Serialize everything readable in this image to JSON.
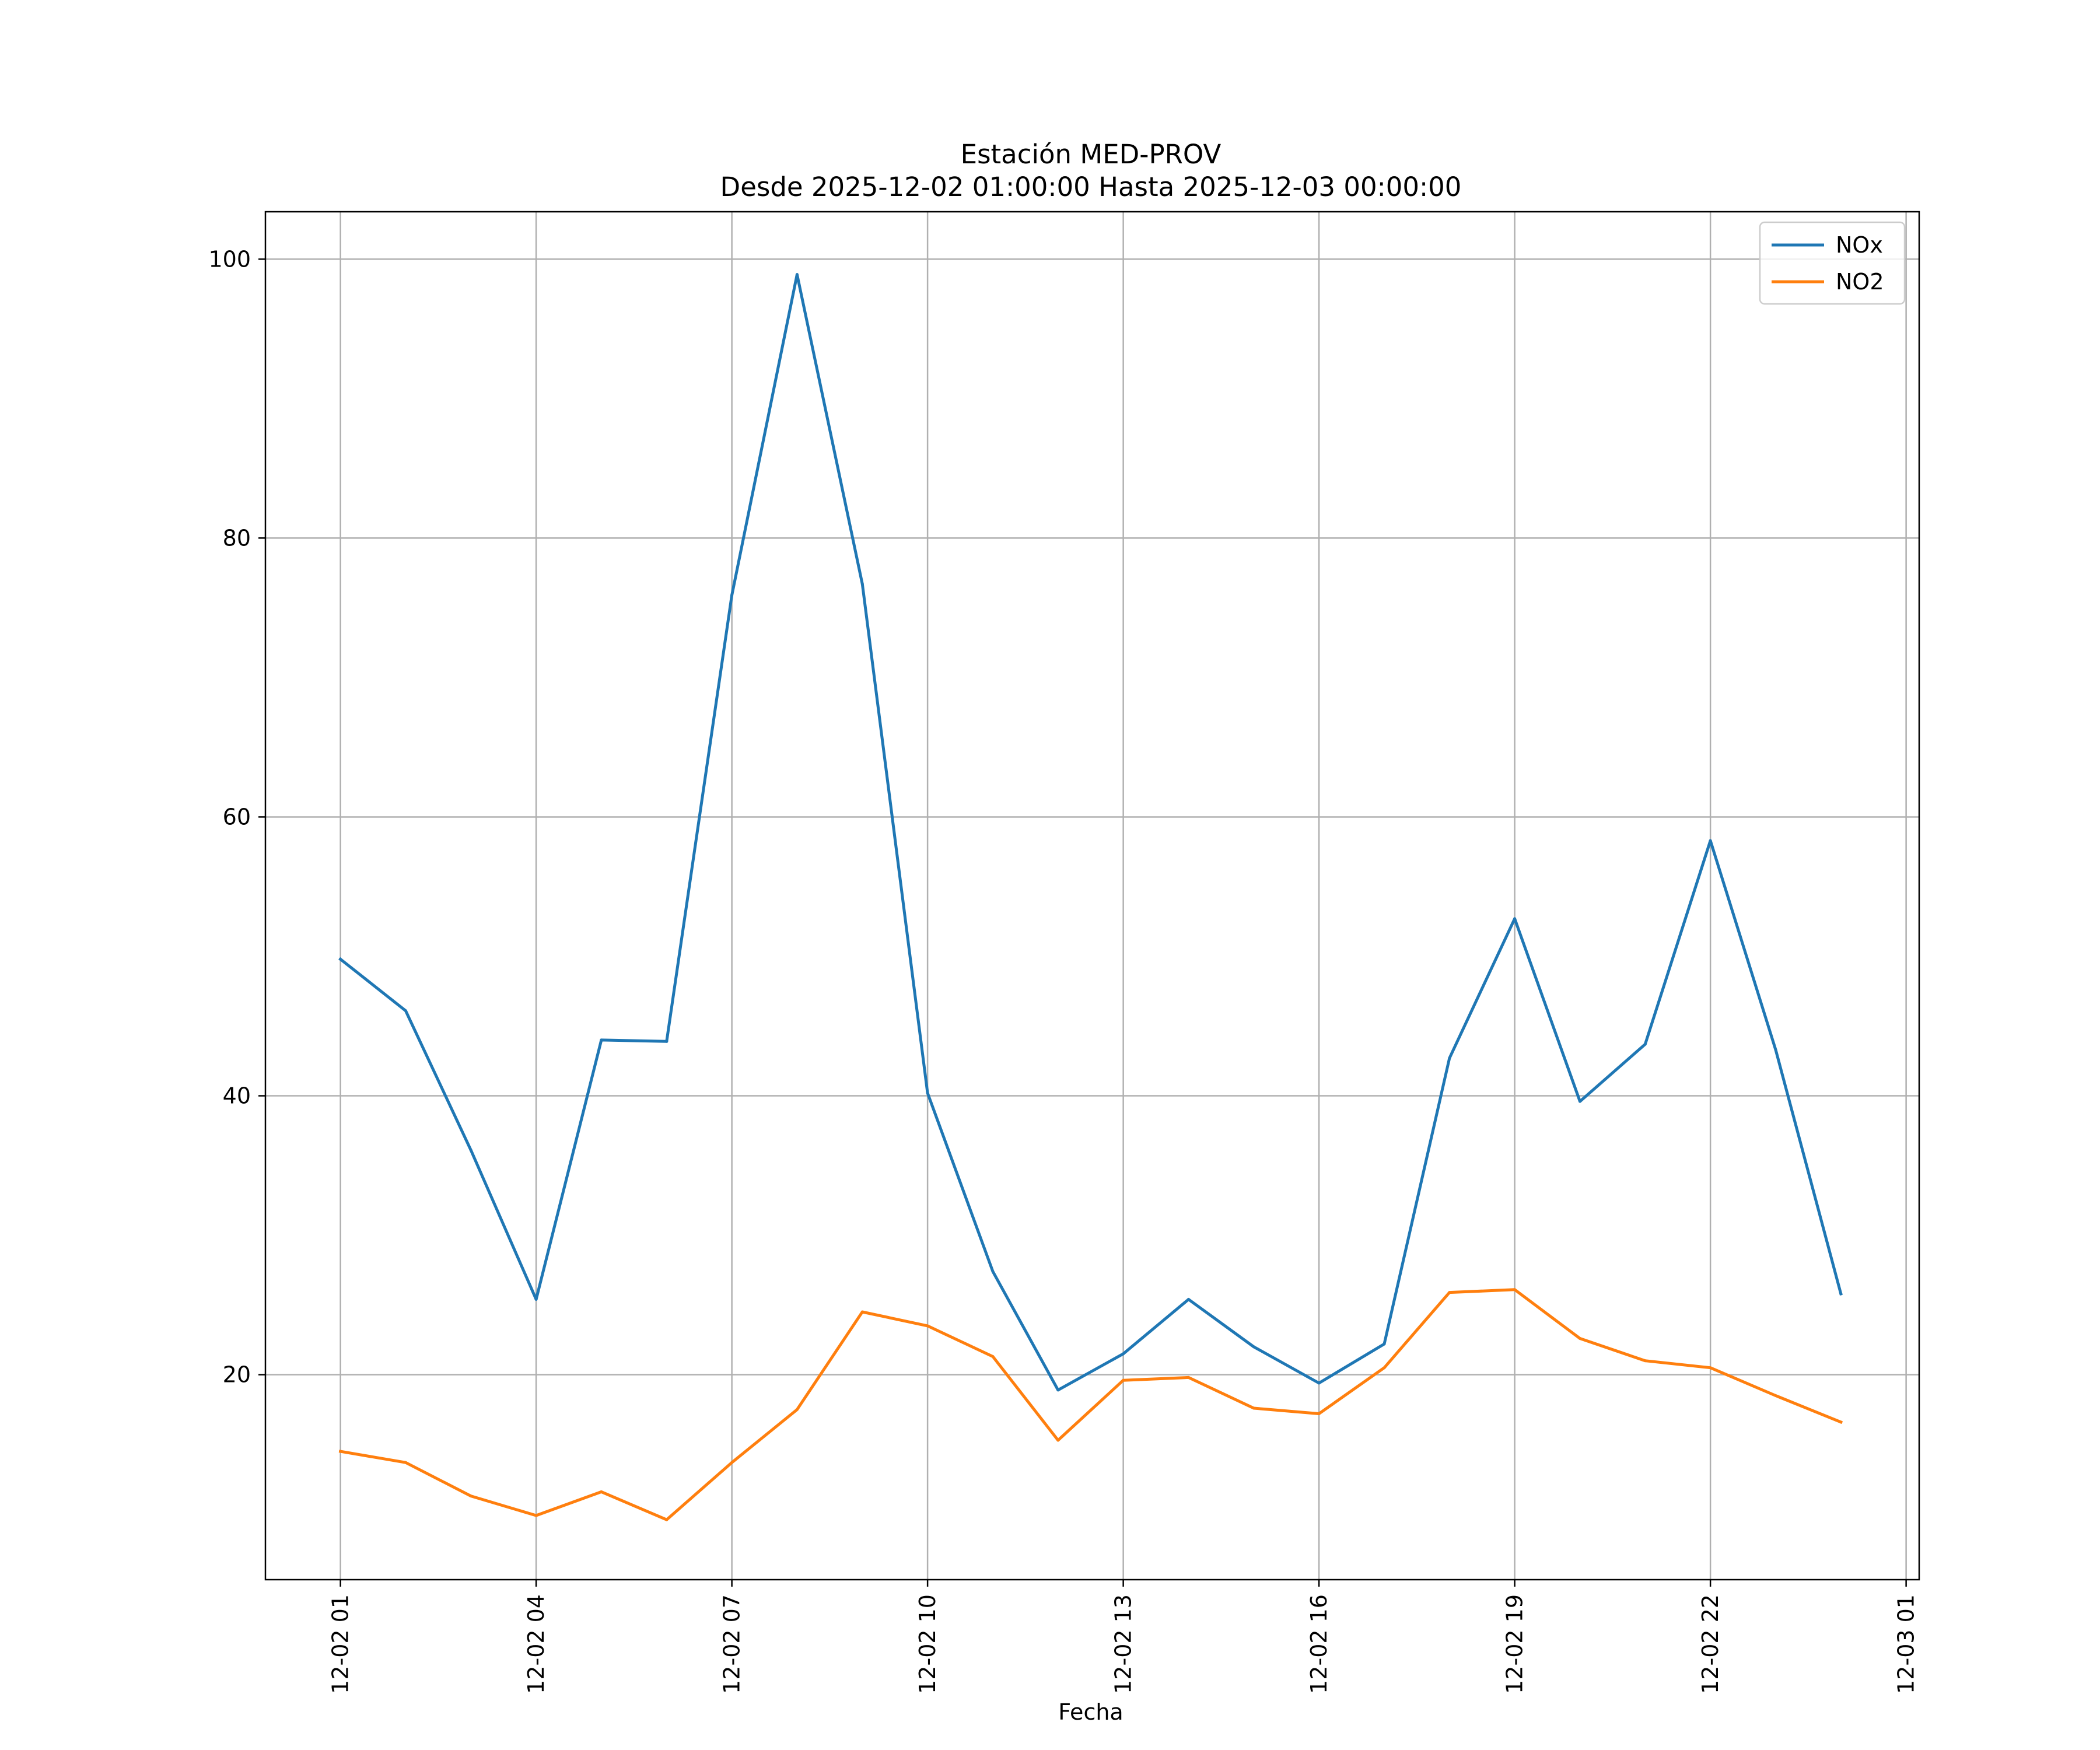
{
  "chart_data": {
    "type": "line",
    "title": "Estación MED-PROV",
    "subtitle": "Desde 2025-12-02 01:00:00 Hasta 2025-12-03 00:00:00",
    "xlabel": "Fecha",
    "ylabel": "",
    "x": [
      "12-02 01",
      "12-02 02",
      "12-02 03",
      "12-02 04",
      "12-02 05",
      "12-02 06",
      "12-02 07",
      "12-02 08",
      "12-02 09",
      "12-02 10",
      "12-02 11",
      "12-02 12",
      "12-02 13",
      "12-02 14",
      "12-02 15",
      "12-02 16",
      "12-02 17",
      "12-02 18",
      "12-02 19",
      "12-02 20",
      "12-02 21",
      "12-02 22",
      "12-02 23",
      "12-03 00"
    ],
    "xticks": [
      {
        "label": "12-02 01",
        "hour": 0
      },
      {
        "label": "12-02 04",
        "hour": 3
      },
      {
        "label": "12-02 07",
        "hour": 6
      },
      {
        "label": "12-02 10",
        "hour": 9
      },
      {
        "label": "12-02 13",
        "hour": 12
      },
      {
        "label": "12-02 16",
        "hour": 15
      },
      {
        "label": "12-02 19",
        "hour": 18
      },
      {
        "label": "12-02 22",
        "hour": 21
      },
      {
        "label": "12-03 01",
        "hour": 24
      }
    ],
    "xlim": [
      -1.15,
      24.2
    ],
    "ylim": [
      5.3,
      103.4
    ],
    "yticks": [
      20,
      40,
      60,
      80,
      100
    ],
    "grid": true,
    "legend_position": "top-right",
    "series": [
      {
        "name": "NOx",
        "color": "#1f77b4",
        "values": [
          49.8,
          46.1,
          36.1,
          25.4,
          44.0,
          43.9,
          75.9,
          98.9,
          76.7,
          40.2,
          27.4,
          18.9,
          21.5,
          25.4,
          22.0,
          19.4,
          22.2,
          42.7,
          52.7,
          39.6,
          43.7,
          58.3,
          43.3,
          25.8
        ]
      },
      {
        "name": "NO2",
        "color": "#ff7f0e",
        "values": [
          14.5,
          13.7,
          11.3,
          9.9,
          11.6,
          9.6,
          13.7,
          17.5,
          24.5,
          23.5,
          21.3,
          15.3,
          19.6,
          19.8,
          17.6,
          17.2,
          20.5,
          25.9,
          26.1,
          22.6,
          21.0,
          20.5,
          18.5,
          16.6
        ]
      }
    ]
  }
}
